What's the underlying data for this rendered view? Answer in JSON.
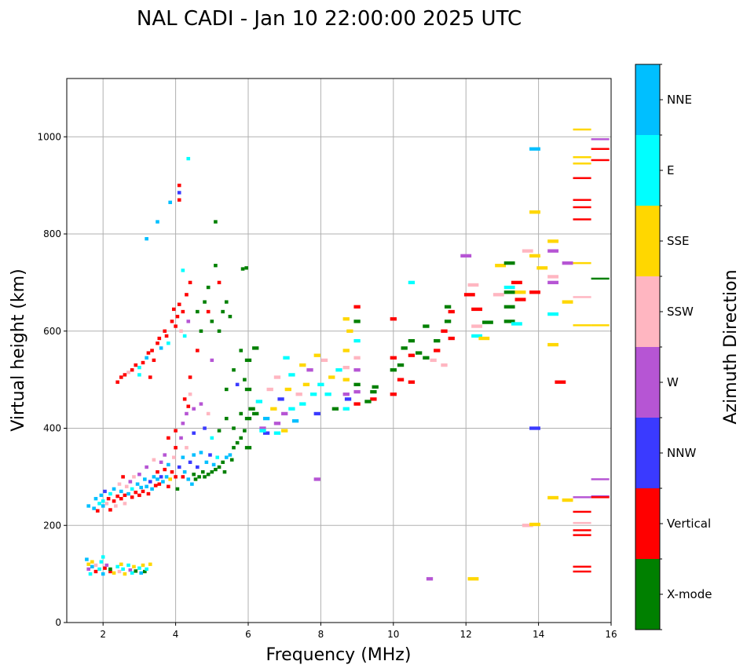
{
  "chart_data": {
    "type": "scatter",
    "title": "NAL CADI - Jan 10 22:00:00 2025 UTC",
    "xlabel": "Frequency (MHz)",
    "ylabel": "Virtual height (km)",
    "xlim": [
      1,
      16
    ],
    "ylim": [
      0,
      1120
    ],
    "xticks": [
      2,
      4,
      6,
      8,
      10,
      12,
      14,
      16
    ],
    "yticks": [
      0,
      200,
      400,
      600,
      800,
      1000
    ],
    "grid": true,
    "colorbar": {
      "label": "Azimuth Direction",
      "categories": [
        "X-mode",
        "Vertical",
        "NNW",
        "W",
        "SSW",
        "SSE",
        "E",
        "NNE"
      ],
      "colors": [
        "#008000",
        "#ff0000",
        "#3a3aff",
        "#b655d4",
        "#ffb6c1",
        "#ffd700",
        "#00ffff",
        "#00bfff"
      ]
    },
    "points_format": [
      "frequency_mhz",
      "height_km",
      "category_index"
    ],
    "points": [
      [
        1.55,
        130,
        7
      ],
      [
        1.6,
        120,
        5
      ],
      [
        1.6,
        110,
        3
      ],
      [
        1.65,
        100,
        6
      ],
      [
        1.7,
        115,
        7
      ],
      [
        1.7,
        125,
        5
      ],
      [
        1.8,
        105,
        1
      ],
      [
        1.8,
        118,
        4
      ],
      [
        1.9,
        110,
        6
      ],
      [
        1.95,
        125,
        6
      ],
      [
        2.0,
        135,
        6
      ],
      [
        2.0,
        100,
        7
      ],
      [
        2.05,
        112,
        1
      ],
      [
        2.1,
        118,
        3
      ],
      [
        2.2,
        105,
        1
      ],
      [
        2.2,
        110,
        0
      ],
      [
        2.3,
        102,
        5
      ],
      [
        2.4,
        115,
        6
      ],
      [
        2.45,
        105,
        4
      ],
      [
        2.5,
        120,
        5
      ],
      [
        2.55,
        110,
        6
      ],
      [
        2.6,
        100,
        5
      ],
      [
        2.7,
        118,
        6
      ],
      [
        2.75,
        108,
        3
      ],
      [
        2.8,
        102,
        6
      ],
      [
        2.85,
        115,
        5
      ],
      [
        2.9,
        106,
        0
      ],
      [
        3.0,
        112,
        6
      ],
      [
        3.05,
        102,
        7
      ],
      [
        3.1,
        118,
        5
      ],
      [
        3.15,
        105,
        0
      ],
      [
        3.2,
        110,
        6
      ],
      [
        3.3,
        120,
        5
      ],
      [
        1.6,
        240,
        7
      ],
      [
        1.75,
        235,
        7
      ],
      [
        1.8,
        255,
        7
      ],
      [
        1.85,
        230,
        1
      ],
      [
        1.9,
        245,
        6
      ],
      [
        1.95,
        262,
        7
      ],
      [
        2.0,
        240,
        7
      ],
      [
        2.0,
        250,
        6
      ],
      [
        2.05,
        270,
        2
      ],
      [
        2.1,
        245,
        4
      ],
      [
        2.15,
        255,
        1
      ],
      [
        2.2,
        232,
        1
      ],
      [
        2.2,
        265,
        6
      ],
      [
        2.3,
        250,
        1
      ],
      [
        2.3,
        275,
        7
      ],
      [
        2.35,
        240,
        4
      ],
      [
        2.4,
        260,
        1
      ],
      [
        2.45,
        285,
        4
      ],
      [
        2.5,
        255,
        1
      ],
      [
        2.5,
        270,
        7
      ],
      [
        2.55,
        300,
        1
      ],
      [
        2.6,
        262,
        1
      ],
      [
        2.6,
        245,
        4
      ],
      [
        2.65,
        280,
        4
      ],
      [
        2.7,
        265,
        7
      ],
      [
        2.75,
        290,
        3
      ],
      [
        2.8,
        258,
        1
      ],
      [
        2.8,
        275,
        6
      ],
      [
        2.85,
        300,
        4
      ],
      [
        2.9,
        268,
        1
      ],
      [
        2.95,
        285,
        7
      ],
      [
        3.0,
        262,
        1
      ],
      [
        3.0,
        305,
        3
      ],
      [
        3.05,
        278,
        7
      ],
      [
        3.1,
        270,
        1
      ],
      [
        3.15,
        295,
        7
      ],
      [
        3.2,
        280,
        7
      ],
      [
        3.2,
        320,
        3
      ],
      [
        3.25,
        265,
        1
      ],
      [
        3.3,
        290,
        2
      ],
      [
        3.35,
        275,
        7
      ],
      [
        3.4,
        300,
        7
      ],
      [
        3.4,
        335,
        4
      ],
      [
        3.45,
        282,
        1
      ],
      [
        3.5,
        295,
        7
      ],
      [
        3.5,
        310,
        1
      ],
      [
        3.55,
        285,
        1
      ],
      [
        3.6,
        300,
        2
      ],
      [
        3.6,
        330,
        3
      ],
      [
        3.65,
        290,
        7
      ],
      [
        3.7,
        315,
        1
      ],
      [
        3.7,
        345,
        3
      ],
      [
        3.75,
        300,
        7
      ],
      [
        3.8,
        280,
        1
      ],
      [
        3.8,
        325,
        7
      ],
      [
        3.85,
        295,
        5
      ],
      [
        3.9,
        310,
        1
      ],
      [
        3.95,
        340,
        4
      ],
      [
        4.0,
        300,
        1
      ],
      [
        4.0,
        360,
        1
      ],
      [
        4.05,
        275,
        0
      ],
      [
        4.1,
        320,
        2
      ],
      [
        4.15,
        380,
        3
      ],
      [
        4.2,
        300,
        1
      ],
      [
        4.2,
        340,
        7
      ],
      [
        4.25,
        310,
        7
      ],
      [
        4.3,
        360,
        4
      ],
      [
        4.35,
        295,
        7
      ],
      [
        4.4,
        330,
        2
      ],
      [
        4.45,
        285,
        7
      ],
      [
        4.5,
        305,
        0
      ],
      [
        4.5,
        345,
        7
      ],
      [
        4.55,
        295,
        0
      ],
      [
        4.6,
        320,
        2
      ],
      [
        4.65,
        300,
        0
      ],
      [
        4.7,
        350,
        7
      ],
      [
        4.75,
        310,
        0
      ],
      [
        4.8,
        300,
        0
      ],
      [
        4.85,
        330,
        7
      ],
      [
        4.9,
        305,
        0
      ],
      [
        4.95,
        345,
        2
      ],
      [
        5.0,
        310,
        0
      ],
      [
        5.05,
        325,
        7
      ],
      [
        5.1,
        315,
        0
      ],
      [
        5.15,
        340,
        6
      ],
      [
        5.2,
        320,
        0
      ],
      [
        5.3,
        330,
        0
      ],
      [
        5.35,
        310,
        0
      ],
      [
        5.4,
        340,
        7
      ],
      [
        5.5,
        345,
        7
      ],
      [
        5.55,
        335,
        0
      ],
      [
        5.6,
        360,
        0
      ],
      [
        5.7,
        370,
        0
      ],
      [
        5.8,
        380,
        0
      ],
      [
        5.9,
        395,
        0
      ],
      [
        6.0,
        360,
        0
      ],
      [
        6.0,
        420,
        0
      ],
      [
        3.8,
        380,
        1
      ],
      [
        4.0,
        395,
        1
      ],
      [
        4.2,
        410,
        3
      ],
      [
        4.3,
        430,
        3
      ],
      [
        4.25,
        460,
        1
      ],
      [
        4.35,
        445,
        1
      ],
      [
        4.5,
        440,
        3
      ],
      [
        4.7,
        450,
        3
      ],
      [
        4.9,
        430,
        4
      ],
      [
        4.4,
        470,
        4
      ],
      [
        4.5,
        390,
        2
      ],
      [
        4.8,
        400,
        2
      ],
      [
        5.0,
        380,
        6
      ],
      [
        5.2,
        395,
        0
      ],
      [
        5.4,
        420,
        0
      ],
      [
        5.6,
        400,
        0
      ],
      [
        5.8,
        430,
        0
      ],
      [
        6.0,
        480,
        0
      ],
      [
        6.1,
        440,
        0
      ],
      [
        2.4,
        495,
        1
      ],
      [
        2.5,
        505,
        1
      ],
      [
        2.6,
        510,
        1
      ],
      [
        2.7,
        515,
        4
      ],
      [
        2.8,
        520,
        1
      ],
      [
        2.9,
        530,
        1
      ],
      [
        3.0,
        525,
        6
      ],
      [
        3.1,
        535,
        1
      ],
      [
        3.2,
        545,
        7
      ],
      [
        3.25,
        555,
        1
      ],
      [
        3.35,
        560,
        1
      ],
      [
        3.4,
        540,
        1
      ],
      [
        3.5,
        575,
        1
      ],
      [
        3.55,
        585,
        1
      ],
      [
        3.6,
        565,
        7
      ],
      [
        3.7,
        600,
        1
      ],
      [
        3.75,
        590,
        1
      ],
      [
        3.8,
        575,
        6
      ],
      [
        3.9,
        620,
        1
      ],
      [
        3.95,
        645,
        1
      ],
      [
        4.0,
        610,
        1
      ],
      [
        4.05,
        630,
        1
      ],
      [
        4.1,
        655,
        1
      ],
      [
        4.15,
        600,
        4
      ],
      [
        4.2,
        640,
        1
      ],
      [
        4.25,
        590,
        6
      ],
      [
        4.3,
        675,
        1
      ],
      [
        4.35,
        620,
        3
      ],
      [
        4.4,
        700,
        1
      ],
      [
        3.3,
        505,
        1
      ],
      [
        3.0,
        510,
        6
      ],
      [
        4.6,
        640,
        0
      ],
      [
        4.7,
        600,
        0
      ],
      [
        4.8,
        660,
        0
      ],
      [
        4.9,
        690,
        0
      ],
      [
        5.0,
        620,
        0
      ],
      [
        5.1,
        735,
        0
      ],
      [
        5.2,
        600,
        0
      ],
      [
        5.3,
        640,
        0
      ],
      [
        5.4,
        660,
        0
      ],
      [
        5.5,
        630,
        0
      ],
      [
        5.2,
        700,
        1
      ],
      [
        4.9,
        640,
        1
      ],
      [
        4.6,
        560,
        1
      ],
      [
        5.0,
        540,
        3
      ],
      [
        4.4,
        505,
        1
      ],
      [
        5.4,
        480,
        0
      ],
      [
        5.6,
        520,
        0
      ],
      [
        5.8,
        560,
        0
      ],
      [
        5.95,
        730,
        0
      ],
      [
        5.9,
        500,
        0
      ],
      [
        5.7,
        490,
        2
      ],
      [
        6.2,
        430,
        0
      ],
      [
        6.3,
        455,
        6
      ],
      [
        6.4,
        400,
        3
      ],
      [
        6.5,
        420,
        7
      ],
      [
        6.5,
        390,
        2
      ],
      [
        6.6,
        480,
        4
      ],
      [
        6.7,
        440,
        5
      ],
      [
        6.8,
        410,
        3
      ],
      [
        6.8,
        505,
        4
      ],
      [
        6.9,
        460,
        2
      ],
      [
        7.0,
        395,
        5
      ],
      [
        7.0,
        430,
        3
      ],
      [
        7.05,
        545,
        6
      ],
      [
        7.1,
        480,
        5
      ],
      [
        7.2,
        440,
        6
      ],
      [
        7.2,
        510,
        6
      ],
      [
        7.3,
        415,
        7
      ],
      [
        7.4,
        470,
        4
      ],
      [
        7.5,
        530,
        5
      ],
      [
        7.5,
        450,
        6
      ],
      [
        7.6,
        490,
        5
      ],
      [
        7.7,
        520,
        3
      ],
      [
        7.8,
        470,
        6
      ],
      [
        7.9,
        550,
        5
      ],
      [
        7.9,
        430,
        2
      ],
      [
        8.0,
        490,
        6
      ],
      [
        8.1,
        540,
        4
      ],
      [
        8.2,
        470,
        6
      ],
      [
        8.3,
        505,
        5
      ],
      [
        8.4,
        440,
        0
      ],
      [
        8.5,
        520,
        6
      ],
      [
        8.7,
        440,
        6
      ],
      [
        8.7,
        470,
        3
      ],
      [
        8.7,
        500,
        5
      ],
      [
        8.7,
        525,
        4
      ],
      [
        8.7,
        560,
        5
      ],
      [
        8.7,
        625,
        5
      ],
      [
        8.75,
        460,
        2
      ],
      [
        8.8,
        600,
        5
      ],
      [
        9.0,
        450,
        1
      ],
      [
        9.0,
        475,
        3
      ],
      [
        9.0,
        490,
        0
      ],
      [
        9.0,
        520,
        3
      ],
      [
        9.0,
        545,
        4
      ],
      [
        9.0,
        580,
        6
      ],
      [
        9.0,
        620,
        0
      ],
      [
        9.0,
        650,
        1
      ],
      [
        9.45,
        460,
        1
      ],
      [
        9.45,
        475,
        0
      ],
      [
        9.5,
        485,
        0
      ],
      [
        9.3,
        455,
        0
      ],
      [
        6.4,
        395,
        6
      ],
      [
        6.0,
        540,
        0
      ],
      [
        6.2,
        565,
        0
      ],
      [
        6.8,
        390,
        6
      ],
      [
        10.0,
        470,
        1
      ],
      [
        10.0,
        520,
        0
      ],
      [
        10.0,
        545,
        1
      ],
      [
        10.2,
        500,
        1
      ],
      [
        10.2,
        530,
        0
      ],
      [
        10.5,
        550,
        1
      ],
      [
        10.5,
        580,
        0
      ],
      [
        10.7,
        555,
        0
      ],
      [
        10.9,
        610,
        0
      ],
      [
        10.9,
        545,
        0
      ],
      [
        11.2,
        560,
        1
      ],
      [
        11.2,
        580,
        0
      ],
      [
        11.4,
        530,
        4
      ],
      [
        11.4,
        600,
        1
      ],
      [
        11.5,
        620,
        0
      ],
      [
        11.5,
        650,
        0
      ],
      [
        11.6,
        640,
        1
      ],
      [
        11.6,
        585,
        1
      ],
      [
        11.1,
        540,
        4
      ],
      [
        10.0,
        625,
        1
      ],
      [
        10.5,
        495,
        1
      ],
      [
        10.3,
        565,
        0
      ],
      [
        12.1,
        675,
        1
      ],
      [
        12.2,
        695,
        4
      ],
      [
        12.3,
        645,
        1
      ],
      [
        12.3,
        610,
        4
      ],
      [
        12.3,
        590,
        6
      ],
      [
        12.5,
        585,
        5
      ],
      [
        12.6,
        618,
        0
      ],
      [
        12.95,
        735,
        5
      ],
      [
        12.9,
        675,
        4
      ],
      [
        13.2,
        740,
        0
      ],
      [
        13.2,
        680,
        0
      ],
      [
        13.2,
        650,
        0
      ],
      [
        13.2,
        620,
        0
      ],
      [
        13.2,
        690,
        6
      ],
      [
        13.4,
        700,
        1
      ],
      [
        13.4,
        615,
        6
      ],
      [
        13.5,
        665,
        1
      ],
      [
        13.5,
        680,
        5
      ],
      [
        13.7,
        765,
        4
      ],
      [
        13.9,
        755,
        5
      ],
      [
        13.9,
        680,
        1
      ],
      [
        13.9,
        845,
        5
      ],
      [
        14.1,
        730,
        5
      ],
      [
        14.4,
        785,
        5
      ],
      [
        14.4,
        765,
        3
      ],
      [
        14.4,
        700,
        3
      ],
      [
        14.4,
        635,
        6
      ],
      [
        14.4,
        572,
        5
      ],
      [
        14.4,
        712,
        4
      ],
      [
        12.0,
        755,
        3
      ],
      [
        13.9,
        400,
        2
      ],
      [
        14.6,
        495,
        1
      ],
      [
        13.9,
        975,
        7
      ],
      [
        13.7,
        200,
        4
      ],
      [
        15.2,
        1015,
        5
      ],
      [
        15.2,
        958,
        5
      ],
      [
        15.2,
        945,
        5
      ],
      [
        15.2,
        915,
        1
      ],
      [
        15.2,
        870,
        1
      ],
      [
        15.2,
        855,
        1
      ],
      [
        15.2,
        830,
        1
      ],
      [
        15.2,
        740,
        5
      ],
      [
        15.2,
        670,
        4
      ],
      [
        15.2,
        612,
        5
      ],
      [
        15.2,
        228,
        1
      ],
      [
        15.2,
        205,
        4
      ],
      [
        15.2,
        190,
        1
      ],
      [
        15.2,
        180,
        1
      ],
      [
        15.2,
        115,
        1
      ],
      [
        15.2,
        105,
        1
      ],
      [
        15.7,
        995,
        3
      ],
      [
        15.7,
        975,
        1
      ],
      [
        15.7,
        952,
        1
      ],
      [
        15.7,
        708,
        0
      ],
      [
        15.7,
        612,
        5
      ],
      [
        15.7,
        295,
        3
      ],
      [
        15.7,
        260,
        3
      ],
      [
        15.7,
        258,
        1
      ],
      [
        15.2,
        258,
        3
      ],
      [
        14.8,
        740,
        3
      ],
      [
        14.8,
        660,
        5
      ],
      [
        14.8,
        252,
        5
      ],
      [
        14.4,
        257,
        5
      ],
      [
        13.9,
        202,
        5
      ],
      [
        4.1,
        870,
        1
      ],
      [
        4.1,
        900,
        1
      ],
      [
        4.1,
        885,
        2
      ],
      [
        3.85,
        865,
        7
      ],
      [
        3.5,
        825,
        7
      ],
      [
        3.2,
        790,
        7
      ],
      [
        4.35,
        955,
        6
      ],
      [
        5.1,
        825,
        0
      ],
      [
        10.5,
        700,
        6
      ],
      [
        11.0,
        90,
        3
      ],
      [
        12.2,
        90,
        5
      ],
      [
        7.9,
        295,
        3
      ],
      [
        5.85,
        728,
        0
      ],
      [
        4.2,
        725,
        6
      ]
    ]
  }
}
